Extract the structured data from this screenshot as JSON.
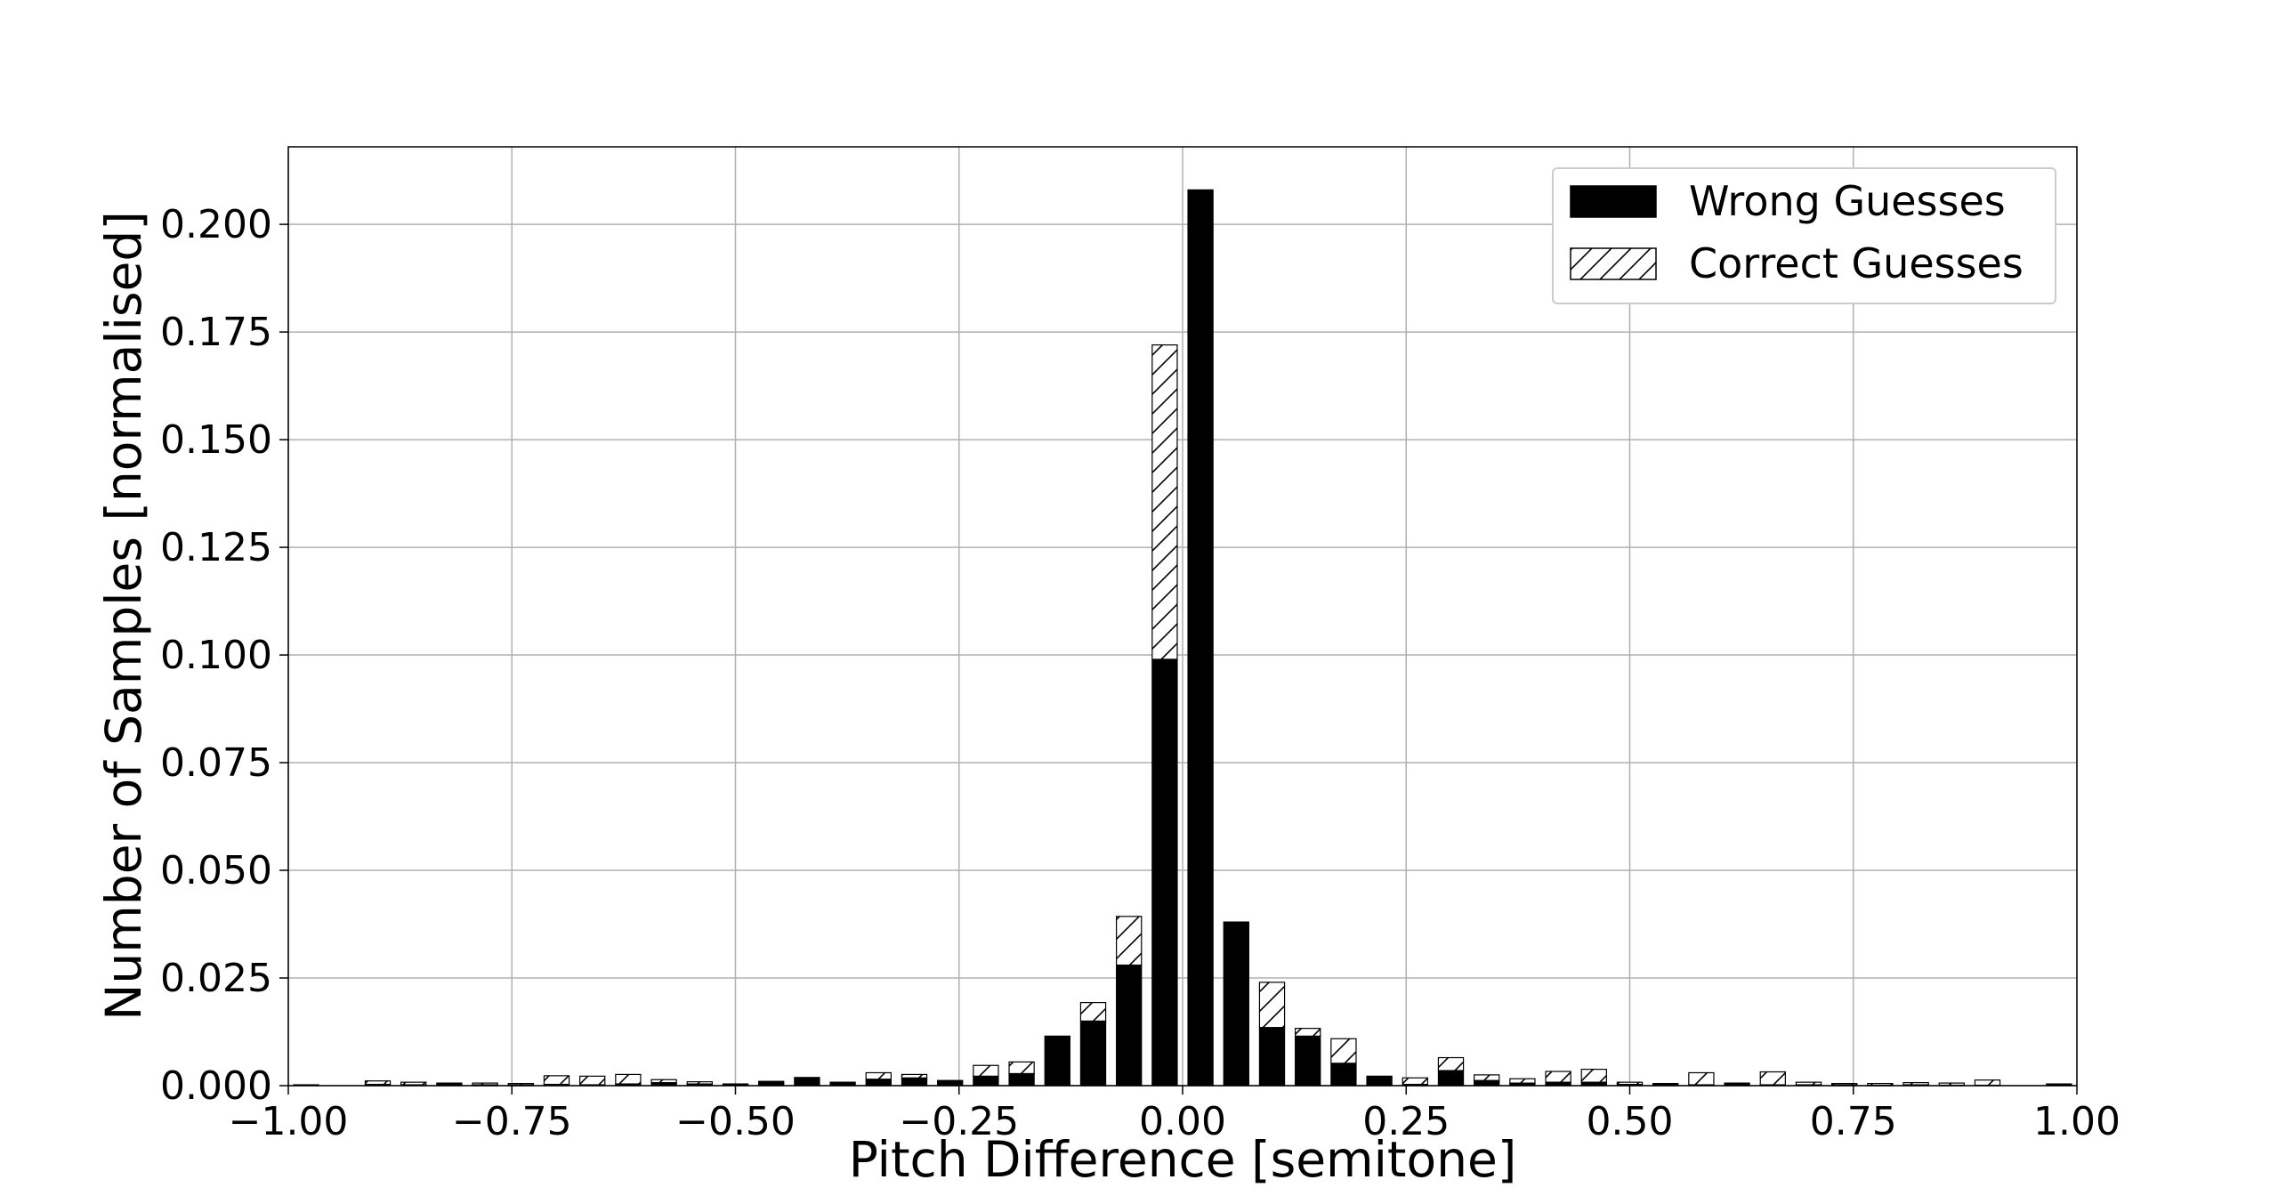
{
  "chart_data": {
    "type": "bar",
    "xlabel": "Pitch Difference [semitone]",
    "ylabel": "Number of Samples [normalised]",
    "xlim": [
      -1.0,
      1.0
    ],
    "ylim": [
      0.0,
      0.218
    ],
    "x_ticks": [
      "−1.00",
      "−0.75",
      "−0.50",
      "−0.25",
      "0.00",
      "0.25",
      "0.50",
      "0.75",
      "1.00"
    ],
    "y_ticks": [
      "0.000",
      "0.025",
      "0.050",
      "0.075",
      "0.100",
      "0.125",
      "0.150",
      "0.175",
      "0.200"
    ],
    "x_tick_values": [
      -1.0,
      -0.75,
      -0.5,
      -0.25,
      0.0,
      0.25,
      0.5,
      0.75,
      1.0
    ],
    "y_tick_values": [
      0.0,
      0.025,
      0.05,
      0.075,
      0.1,
      0.125,
      0.15,
      0.175,
      0.2
    ],
    "grid": true,
    "legend_position": "top-right",
    "x": [
      -0.98,
      -0.94,
      -0.9,
      -0.86,
      -0.82,
      -0.78,
      -0.74,
      -0.7,
      -0.66,
      -0.62,
      -0.58,
      -0.54,
      -0.5,
      -0.46,
      -0.42,
      -0.38,
      -0.34,
      -0.3,
      -0.26,
      -0.22,
      -0.18,
      -0.14,
      -0.1,
      -0.06,
      -0.02,
      0.02,
      0.06,
      0.1,
      0.14,
      0.18,
      0.22,
      0.26,
      0.3,
      0.34,
      0.38,
      0.42,
      0.46,
      0.5,
      0.54,
      0.58,
      0.62,
      0.66,
      0.7,
      0.74,
      0.78,
      0.82,
      0.86,
      0.9,
      0.94,
      0.98
    ],
    "series": [
      {
        "name": "Wrong Guesses",
        "style": "solid",
        "color": "#000000",
        "values": [
          0.0002,
          0.0,
          0.0003,
          0.0002,
          0.0006,
          0.0002,
          0.0002,
          0.0003,
          0.0002,
          0.0004,
          0.0007,
          0.0004,
          0.0002,
          0.0008,
          0.0019,
          0.0008,
          0.0015,
          0.0018,
          0.0012,
          0.0022,
          0.0028,
          0.0115,
          0.015,
          0.028,
          0.099,
          0.208,
          0.038,
          0.0135,
          0.0115,
          0.0052,
          0.0022,
          0.0003,
          0.0035,
          0.0012,
          0.0006,
          0.0008,
          0.0008,
          0.0003,
          0.0003,
          0.0002,
          0.0006,
          0.0002,
          0.0002,
          0.0002,
          0.0001,
          0.0002,
          0.0001,
          0.0001,
          0.0,
          0.0002
        ]
      },
      {
        "name": "Correct Guesses",
        "style": "hatched",
        "color": "#ffffff",
        "values": [
          0.0,
          0.0,
          0.0008,
          0.0006,
          0.0,
          0.0004,
          0.0003,
          0.002,
          0.002,
          0.0022,
          0.0007,
          0.0005,
          0.0002,
          0.0002,
          0.0,
          0.0,
          0.0015,
          0.0008,
          0.0,
          0.0025,
          0.0027,
          0.0,
          0.0043,
          0.0113,
          0.073,
          0.0,
          0.0,
          0.0105,
          0.0018,
          0.0057,
          0.0,
          0.0015,
          0.003,
          0.0013,
          0.001,
          0.0025,
          0.003,
          0.0005,
          0.0002,
          0.0028,
          0.0,
          0.003,
          0.0006,
          0.0003,
          0.0004,
          0.0005,
          0.0005,
          0.0012,
          0.0,
          0.0002
        ]
      }
    ]
  }
}
